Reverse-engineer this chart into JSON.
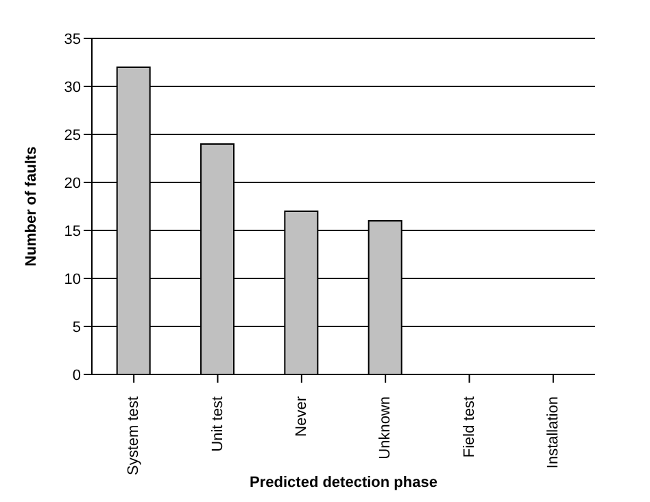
{
  "chart_data": {
    "type": "bar",
    "xlabel": "Predicted detection phase",
    "ylabel": "Number of faults",
    "categories": [
      "System test",
      "Unit test",
      "Never",
      "Unknown",
      "Field test",
      "Installation"
    ],
    "values": [
      32,
      24,
      17,
      16,
      0,
      0
    ],
    "color": "#c0c0c0",
    "ylim": [
      0,
      35
    ],
    "yticks": [
      0,
      5,
      10,
      15,
      20,
      25,
      30,
      35
    ],
    "grid": "y"
  }
}
